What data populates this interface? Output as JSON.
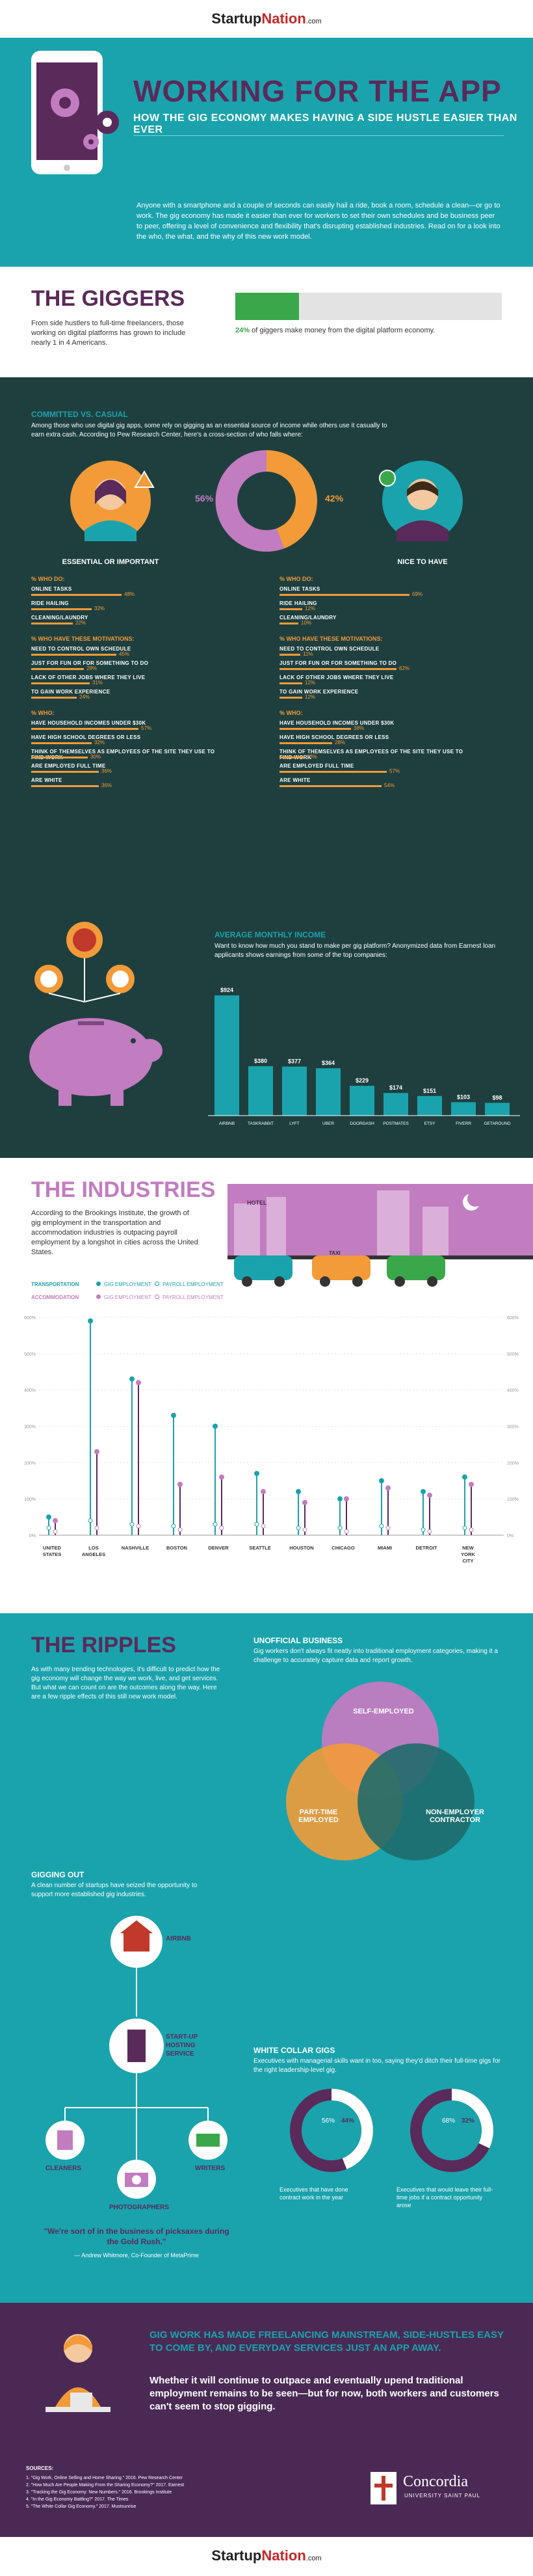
{
  "brand": {
    "name_a": "Startup",
    "name_b": "Nation",
    "suffix": ".com"
  },
  "hero": {
    "title": "WORKING FOR THE APP",
    "subtitle": "HOW THE GIG ECONOMY MAKES HAVING A SIDE HUSTLE EASIER THAN EVER",
    "intro": "Anyone with a smartphone and a couple of seconds can easily hail a ride, book a room, schedule a clean—or go to work. The gig economy has made it easier than ever for workers to set their own schedules and be business peer to peer, offering a level of convenience and flexibility that's disrupting established industries. Read on for a look into the who, the what, and the why of this new work model."
  },
  "giggers": {
    "title": "THE GIGGERS",
    "text": "From side hustlers to full-time freelancers, those working on digital platforms has grown to include nearly 1 in 4 Americans.",
    "stat_pct": "24%",
    "stat_text": "of giggers make money from the digital platform economy.",
    "fill": 0.24
  },
  "committed": {
    "title": "COMMITTED VS. CASUAL",
    "text": "Among those who use digital gig apps, some rely on gigging as an essential source of income while others use it casually to earn extra cash. According to Pew Research Center, here's a cross-section of who falls where:",
    "left_pct": "56%",
    "right_pct": "42%",
    "left_label": "ESSENTIAL OR IMPORTANT",
    "right_label": "NICE TO HAVE",
    "who_do": "% WHO DO:",
    "who_have": "% WHO HAVE THESE MOTIVATIONS:",
    "who": "% WHO:",
    "left_do": [
      {
        "l": "ONLINE TASKS",
        "v": 48
      },
      {
        "l": "RIDE HAILING",
        "v": 32
      },
      {
        "l": "CLEANING/LAUNDRY",
        "v": 22
      }
    ],
    "right_do": [
      {
        "l": "ONLINE TASKS",
        "v": 69
      },
      {
        "l": "RIDE HAILING",
        "v": 12
      },
      {
        "l": "CLEANING/LAUNDRY",
        "v": 10
      }
    ],
    "left_mot": [
      {
        "l": "NEED TO CONTROL OWN SCHEDULE",
        "v": 45
      },
      {
        "l": "JUST FOR FUN OR FOR SOMETHING TO DO",
        "v": 28
      },
      {
        "l": "LACK OF OTHER JOBS WHERE THEY LIVE",
        "v": 31
      },
      {
        "l": "TO GAIN WORK EXPERIENCE",
        "v": 24
      }
    ],
    "right_mot": [
      {
        "l": "NEED TO CONTROL OWN SCHEDULE",
        "v": 11
      },
      {
        "l": "JUST FOR FUN OR FOR SOMETHING TO DO",
        "v": 62
      },
      {
        "l": "LACK OF OTHER JOBS WHERE THEY LIVE",
        "v": 12
      },
      {
        "l": "TO GAIN WORK EXPERIENCE",
        "v": 12
      }
    ],
    "left_who": [
      {
        "l": "HAVE HOUSEHOLD INCOMES UNDER $30K",
        "v": 57
      },
      {
        "l": "HAVE HIGH SCHOOL DEGREES OR LESS",
        "v": 32
      },
      {
        "l": "THINK OF THEMSELVES AS EMPLOYEES OF THE SITE THEY USE TO FIND WORK",
        "v": 30
      },
      {
        "l": "ARE EMPLOYED FULL TIME",
        "v": 36
      },
      {
        "l": "ARE WHITE",
        "v": 36
      }
    ],
    "right_who": [
      {
        "l": "HAVE HOUSEHOLD INCOMES UNDER $30K",
        "v": 38
      },
      {
        "l": "HAVE HIGH SCHOOL DEGREES OR LESS",
        "v": 28
      },
      {
        "l": "THINK OF THEMSELVES AS EMPLOYEES OF THE SITE THEY USE TO FIND WORK",
        "v": 13
      },
      {
        "l": "ARE EMPLOYED FULL TIME",
        "v": 57
      },
      {
        "l": "ARE WHITE",
        "v": 54
      }
    ]
  },
  "income": {
    "title": "AVERAGE MONTHLY INCOME",
    "text": "Want to know how much you stand to make per gig platform? Anonymized data from Earnest loan applicants shows earnings from some of the top companies:",
    "items": [
      {
        "l": "AIRBNB",
        "v": 924,
        "t": "$924"
      },
      {
        "l": "TASKRABBIT",
        "v": 380,
        "t": "$380"
      },
      {
        "l": "LYFT",
        "v": 377,
        "t": "$377"
      },
      {
        "l": "UBER",
        "v": 364,
        "t": "$364"
      },
      {
        "l": "DOORDASH",
        "v": 229,
        "t": "$229"
      },
      {
        "l": "POSTMATES",
        "v": 174,
        "t": "$174"
      },
      {
        "l": "ETSY",
        "v": 151,
        "t": "$151"
      },
      {
        "l": "FIVERR",
        "v": 103,
        "t": "$103"
      },
      {
        "l": "GETAROUND",
        "v": 98,
        "t": "$98"
      }
    ]
  },
  "industries": {
    "title": "THE INDUSTRIES",
    "text": "According to the Brookings Institute, the growth of gig employment in the transportation and accommodation industries is outpacing payroll employment by a longshot in cities across the United States.",
    "legend": {
      "transportation": "TRANSPORTATION",
      "accommodation": "ACCOMMODATION",
      "gig": "GIG EMPLOYMENT",
      "payroll": "PAYROLL EMPLOYMENT"
    },
    "hotel": "HOTEL",
    "taxi": "TAXI",
    "cities": [
      "UNITED STATES",
      "LOS ANGELES",
      "NASHVILLE",
      "BOSTON",
      "DENVER",
      "SEATTLE",
      "HOUSTON",
      "CHICAGO",
      "MIAMI",
      "DETROIT",
      "NEW YORK CITY"
    ],
    "ticks": [
      "600%",
      "500%",
      "400%",
      "300%",
      "200%",
      "100%",
      "0%"
    ],
    "trans_gig": [
      50,
      590,
      430,
      330,
      300,
      170,
      120,
      100,
      150,
      120,
      160
    ],
    "trans_pay": [
      20,
      40,
      30,
      25,
      30,
      30,
      20,
      20,
      25,
      15,
      20
    ],
    "acc_gig": [
      40,
      230,
      420,
      140,
      160,
      120,
      90,
      100,
      130,
      110,
      140
    ],
    "acc_pay": [
      10,
      20,
      25,
      15,
      20,
      25,
      15,
      10,
      20,
      10,
      15
    ]
  },
  "ripples": {
    "title": "THE RIPPLES",
    "text": "As with many trending technologies, it's difficult to predict how the gig economy will change the way we work, live, and get services. But what we can count on are the outcomes along the way. Here are a few ripple effects of this still new work model.",
    "unofficial_title": "UNOFFICIAL BUSINESS",
    "unofficial_text": "Gig workers don't always fit neatly into traditional employment categories, making it a challenge to accurately capture data and report growth.",
    "venn": [
      "SELF-EMPLOYED",
      "PART-TIME EMPLOYED",
      "NON-EMPLOYER CONTRACTOR"
    ],
    "gigging_title": "GIGGING OUT",
    "gigging_text": "A clean number of startups have seized the opportunity to support more established gig industries.",
    "flow": [
      "AIRBNB",
      "START-UP HOSTING SERVICE",
      "CLEANERS",
      "WRITERS",
      "PHOTOGRAPHERS"
    ],
    "quote": "\"We're sort of in the business of picksaxes during the Gold Rush.\"",
    "quote_by": "— Andrew Whitmore, Co-Founder of MetaPrime",
    "white_title": "WHITE COLLAR GIGS",
    "white_text": "Executives with managerial skills want in too, saying they'd ditch their full-time gigs for the right leadership-level gig.",
    "donut1": {
      "a": "56%",
      "b": "44%",
      "cap": "Executives that have done contract work in the year",
      "fill": 0.44
    },
    "donut2": {
      "a": "68%",
      "b": "32%",
      "cap": "Executives that would leave their full-time jobs if a contract opportunity arose",
      "fill": 0.32
    }
  },
  "cta": {
    "line1": "GIG WORK HAS MADE FREELANCING MAINSTREAM, SIDE-HUSTLES EASY TO COME BY, AND EVERYDAY SERVICES JUST AN APP AWAY.",
    "line2": "Whether it will continue to outpace and eventually upend traditional employment remains to be seen—but for now, both workers and customers can't seem to stop gigging."
  },
  "sources": {
    "title": "SOURCES:",
    "items": [
      "1. \"Gig Work, Online Selling and Home Sharing.\" 2016. Pew Research Center",
      "2. \"How Much Are People Making From the Sharing Economy?\" 2017. Earnest",
      "3. \"Tracking the Gig Economy: New Numbers.\" 2016. Brookings Institute",
      "4. \"In the Gig Economy Battling?\" 2017. The Times",
      "5. \"The White Collar Gig Economy.\" 2017. Mustsunrise"
    ],
    "university": "Concordia",
    "university_sub": "UNIVERSITY SAINT PAUL"
  },
  "colors": {
    "teal": "#1aa3ac",
    "plum": "#5a2a5a",
    "orange": "#f29b38",
    "pink": "#c27cc0",
    "dark": "#1f3f3f",
    "green": "#3aa84a"
  }
}
